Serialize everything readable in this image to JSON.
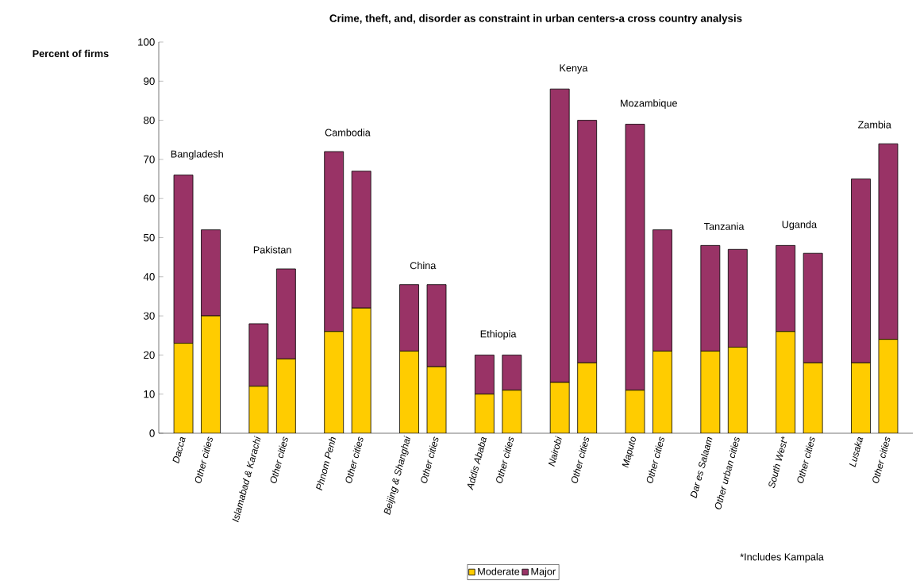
{
  "chart_data": {
    "type": "bar",
    "stacked": true,
    "title": "Crime, theft, and, disorder as constraint in urban centers-a cross country analysis",
    "ylabel": "Percent of firms",
    "categories": [
      "Dacca",
      "Other cities",
      "Islamabad & Karachi",
      "Other cities",
      "Phnom Penh",
      "Other cities",
      "Beijing & Shanghai",
      "Other cities",
      "Addis Ababa",
      "Other cities",
      "Nairobi",
      "Other cities",
      "Maputo",
      "Other cities",
      "Dar es Salaam",
      "Other urban cities",
      "South West*",
      "Other cities",
      "Lusaka",
      "Other cities"
    ],
    "series": [
      {
        "name": "Moderate",
        "color": "#ffcc00",
        "values": [
          23,
          30,
          12,
          19,
          26,
          32,
          21,
          17,
          10,
          11,
          13,
          18,
          11,
          21,
          21,
          22,
          26,
          18,
          18,
          24
        ]
      },
      {
        "name": "Major",
        "color": "#993366",
        "values": [
          43,
          22,
          16,
          23,
          46,
          35,
          17,
          21,
          10,
          9,
          75,
          62,
          68,
          31,
          27,
          25,
          22,
          28,
          47,
          50
        ]
      }
    ],
    "ylim": [
      0,
      100
    ],
    "yticks": [
      0,
      10,
      20,
      30,
      40,
      50,
      60,
      70,
      80,
      90,
      100
    ],
    "legend": "bottom",
    "annotations": [
      "Bangladesh",
      "Pakistan",
      "Cambodia",
      "China",
      "Ethiopia",
      "Kenya",
      "Mozambique",
      "Tanzania",
      "Uganda",
      "Zambia",
      "*Includes Kampala"
    ]
  }
}
